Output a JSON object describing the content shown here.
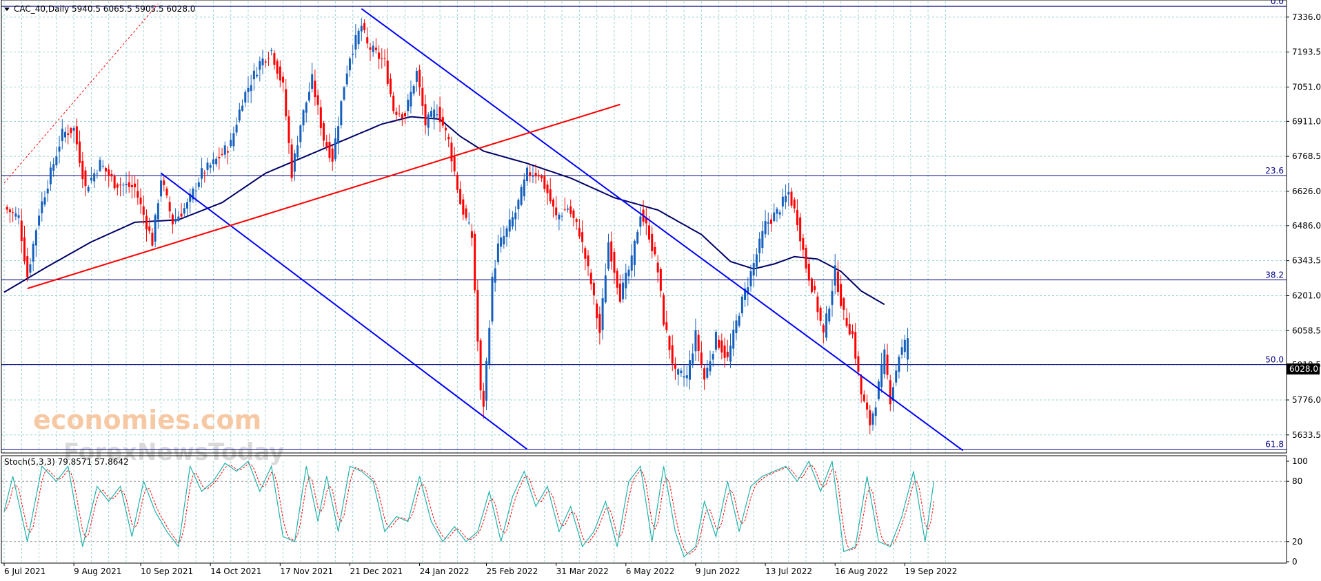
{
  "header": {
    "symbol": "CAC_40,Daily",
    "ohlc": "5940.5 6065.5 5905.5 6028.0"
  },
  "stoch_label": "Stoch(5,3,3) 79.8571 57.8642",
  "watermark": {
    "line1": "economies.com",
    "line2": "ForexNewsToday"
  },
  "current_price_label": "6028.0",
  "colors": {
    "bull": "#1560BD",
    "bear": "#FF0000",
    "ma": "#000066",
    "trendline_blue": "#0000FF",
    "trendline_red": "#FF0000",
    "fib_line": "#000080",
    "grid": "#9ED3D3",
    "stoch_main": "#20B2AA",
    "stoch_signal": "#FF0000"
  },
  "chart_data": [
    {
      "type": "candlestick",
      "title": "CAC_40,Daily",
      "ylim": [
        5560,
        7400
      ],
      "price_ticks": [
        "7336.0",
        "7193.5",
        "7051.0",
        "6911.0",
        "6768.5",
        "6626.0",
        "6486.0",
        "6343.5",
        "6201.0",
        "6058.5",
        "5918.5",
        "5776.0",
        "5633.5"
      ],
      "price_tick_values": [
        7336.0,
        7193.5,
        7051.0,
        6911.0,
        6768.5,
        6626.0,
        6486.0,
        6343.5,
        6201.0,
        6058.5,
        5918.5,
        5776.0,
        5633.5
      ],
      "date_ticks": [
        "6 Jul 2021",
        "9 Aug 2021",
        "10 Sep 2021",
        "14 Oct 2021",
        "17 Nov 2021",
        "21 Dec 2021",
        "24 Jan 2022",
        "25 Feb 2022",
        "31 Mar 2022",
        "6 May 2022",
        "9 Jun 2022",
        "13 Jul 2022",
        "16 Aug 2022",
        "19 Sep 2022"
      ],
      "date_tick_bar_index": [
        0,
        24,
        47,
        71,
        95,
        119,
        143,
        166,
        190,
        214,
        238,
        262,
        286,
        310
      ],
      "fibonacci": [
        {
          "label": "0.0",
          "value": 7380
        },
        {
          "label": "23.6",
          "value": 6690
        },
        {
          "label": "38.2",
          "value": 6265
        },
        {
          "label": "50.0",
          "value": 5920
        },
        {
          "label": "61.8",
          "value": 5575
        }
      ],
      "anchors": [
        {
          "i": 0,
          "p": 6560
        },
        {
          "i": 5,
          "p": 6520
        },
        {
          "i": 8,
          "p": 6280
        },
        {
          "i": 12,
          "p": 6540
        },
        {
          "i": 20,
          "p": 6860
        },
        {
          "i": 24,
          "p": 6880
        },
        {
          "i": 28,
          "p": 6640
        },
        {
          "i": 33,
          "p": 6740
        },
        {
          "i": 38,
          "p": 6660
        },
        {
          "i": 45,
          "p": 6640
        },
        {
          "i": 51,
          "p": 6420
        },
        {
          "i": 54,
          "p": 6680
        },
        {
          "i": 58,
          "p": 6500
        },
        {
          "i": 63,
          "p": 6570
        },
        {
          "i": 68,
          "p": 6700
        },
        {
          "i": 72,
          "p": 6740
        },
        {
          "i": 78,
          "p": 6820
        },
        {
          "i": 82,
          "p": 7000
        },
        {
          "i": 88,
          "p": 7150
        },
        {
          "i": 92,
          "p": 7200
        },
        {
          "i": 96,
          "p": 7050
        },
        {
          "i": 99,
          "p": 6700
        },
        {
          "i": 102,
          "p": 6900
        },
        {
          "i": 106,
          "p": 7080
        },
        {
          "i": 110,
          "p": 6840
        },
        {
          "i": 113,
          "p": 6760
        },
        {
          "i": 117,
          "p": 7060
        },
        {
          "i": 119,
          "p": 7180
        },
        {
          "i": 123,
          "p": 7300
        },
        {
          "i": 125,
          "p": 7220
        },
        {
          "i": 131,
          "p": 7150
        },
        {
          "i": 134,
          "p": 6960
        },
        {
          "i": 138,
          "p": 6940
        },
        {
          "i": 142,
          "p": 7110
        },
        {
          "i": 145,
          "p": 6900
        },
        {
          "i": 149,
          "p": 6960
        },
        {
          "i": 153,
          "p": 6830
        },
        {
          "i": 157,
          "p": 6580
        },
        {
          "i": 161,
          "p": 6440
        },
        {
          "i": 164,
          "p": 5800
        },
        {
          "i": 165,
          "p": 5760
        },
        {
          "i": 168,
          "p": 6260
        },
        {
          "i": 170,
          "p": 6400
        },
        {
          "i": 172,
          "p": 6440
        },
        {
          "i": 176,
          "p": 6540
        },
        {
          "i": 180,
          "p": 6700
        },
        {
          "i": 184,
          "p": 6700
        },
        {
          "i": 187,
          "p": 6620
        },
        {
          "i": 190,
          "p": 6520
        },
        {
          "i": 194,
          "p": 6560
        },
        {
          "i": 198,
          "p": 6460
        },
        {
          "i": 202,
          "p": 6250
        },
        {
          "i": 205,
          "p": 6050
        },
        {
          "i": 208,
          "p": 6420
        },
        {
          "i": 212,
          "p": 6200
        },
        {
          "i": 216,
          "p": 6340
        },
        {
          "i": 219,
          "p": 6540
        },
        {
          "i": 222,
          "p": 6450
        },
        {
          "i": 225,
          "p": 6300
        },
        {
          "i": 227,
          "p": 6100
        },
        {
          "i": 231,
          "p": 5880
        },
        {
          "i": 235,
          "p": 5870
        },
        {
          "i": 238,
          "p": 6040
        },
        {
          "i": 241,
          "p": 5860
        },
        {
          "i": 245,
          "p": 6030
        },
        {
          "i": 249,
          "p": 5940
        },
        {
          "i": 253,
          "p": 6140
        },
        {
          "i": 258,
          "p": 6330
        },
        {
          "i": 262,
          "p": 6490
        },
        {
          "i": 266,
          "p": 6540
        },
        {
          "i": 270,
          "p": 6620
        },
        {
          "i": 273,
          "p": 6510
        },
        {
          "i": 276,
          "p": 6320
        },
        {
          "i": 279,
          "p": 6200
        },
        {
          "i": 282,
          "p": 6040
        },
        {
          "i": 286,
          "p": 6300
        },
        {
          "i": 289,
          "p": 6120
        },
        {
          "i": 292,
          "p": 6040
        },
        {
          "i": 295,
          "p": 5800
        },
        {
          "i": 298,
          "p": 5680
        },
        {
          "i": 300,
          "p": 5770
        },
        {
          "i": 303,
          "p": 5960
        },
        {
          "i": 305,
          "p": 5780
        },
        {
          "i": 308,
          "p": 5960
        },
        {
          "i": 311,
          "p": 6028
        }
      ],
      "moving_average_anchors": [
        {
          "i": 0,
          "p": 6215
        },
        {
          "i": 15,
          "p": 6320
        },
        {
          "i": 30,
          "p": 6420
        },
        {
          "i": 45,
          "p": 6500
        },
        {
          "i": 60,
          "p": 6510
        },
        {
          "i": 75,
          "p": 6580
        },
        {
          "i": 90,
          "p": 6700
        },
        {
          "i": 100,
          "p": 6750
        },
        {
          "i": 110,
          "p": 6800
        },
        {
          "i": 120,
          "p": 6850
        },
        {
          "i": 130,
          "p": 6900
        },
        {
          "i": 140,
          "p": 6930
        },
        {
          "i": 150,
          "p": 6920
        },
        {
          "i": 157,
          "p": 6850
        },
        {
          "i": 165,
          "p": 6790
        },
        {
          "i": 180,
          "p": 6740
        },
        {
          "i": 195,
          "p": 6680
        },
        {
          "i": 210,
          "p": 6600
        },
        {
          "i": 225,
          "p": 6550
        },
        {
          "i": 240,
          "p": 6450
        },
        {
          "i": 250,
          "p": 6340
        },
        {
          "i": 258,
          "p": 6310
        },
        {
          "i": 265,
          "p": 6330
        },
        {
          "i": 272,
          "p": 6360
        },
        {
          "i": 280,
          "p": 6350
        },
        {
          "i": 288,
          "p": 6300
        },
        {
          "i": 295,
          "p": 6220
        },
        {
          "i": 303,
          "p": 6165
        }
      ],
      "trendlines": [
        {
          "name": "upper-descending",
          "i1": 123,
          "p1": 7370,
          "i2": 330,
          "p2": 5570,
          "color": "blue"
        },
        {
          "name": "channel-lower",
          "i1": 54,
          "p1": 6700,
          "i2": 180,
          "p2": 5575,
          "color": "blue"
        },
        {
          "name": "rising-support",
          "i1": 8,
          "p1": 6230,
          "i2": 212,
          "p2": 6980,
          "color": "red"
        },
        {
          "name": "projection",
          "i1": 0,
          "p1": 6660,
          "i2": 53,
          "p2": 7390,
          "color": "red",
          "dotted": true
        }
      ]
    },
    {
      "type": "line",
      "title": "Stoch(5,3,3)",
      "ylim": [
        0,
        100
      ],
      "y_ticks": [
        "100",
        "80",
        "20",
        "0"
      ],
      "y_tick_values": [
        100,
        80,
        20,
        0
      ],
      "levels": [
        80,
        20
      ],
      "main_anchors": [
        {
          "i": 0,
          "v": 50
        },
        {
          "i": 3,
          "v": 85
        },
        {
          "i": 8,
          "v": 20
        },
        {
          "i": 13,
          "v": 95
        },
        {
          "i": 18,
          "v": 80
        },
        {
          "i": 22,
          "v": 95
        },
        {
          "i": 27,
          "v": 15
        },
        {
          "i": 32,
          "v": 75
        },
        {
          "i": 36,
          "v": 60
        },
        {
          "i": 40,
          "v": 75
        },
        {
          "i": 44,
          "v": 25
        },
        {
          "i": 48,
          "v": 80
        },
        {
          "i": 52,
          "v": 50
        },
        {
          "i": 56,
          "v": 30
        },
        {
          "i": 60,
          "v": 15
        },
        {
          "i": 64,
          "v": 95
        },
        {
          "i": 68,
          "v": 70
        },
        {
          "i": 72,
          "v": 80
        },
        {
          "i": 76,
          "v": 98
        },
        {
          "i": 80,
          "v": 90
        },
        {
          "i": 84,
          "v": 100
        },
        {
          "i": 88,
          "v": 70
        },
        {
          "i": 92,
          "v": 95
        },
        {
          "i": 96,
          "v": 25
        },
        {
          "i": 100,
          "v": 20
        },
        {
          "i": 104,
          "v": 95
        },
        {
          "i": 108,
          "v": 40
        },
        {
          "i": 111,
          "v": 85
        },
        {
          "i": 115,
          "v": 30
        },
        {
          "i": 119,
          "v": 95
        },
        {
          "i": 123,
          "v": 90
        },
        {
          "i": 127,
          "v": 80
        },
        {
          "i": 131,
          "v": 30
        },
        {
          "i": 135,
          "v": 45
        },
        {
          "i": 139,
          "v": 40
        },
        {
          "i": 143,
          "v": 85
        },
        {
          "i": 147,
          "v": 40
        },
        {
          "i": 151,
          "v": 20
        },
        {
          "i": 155,
          "v": 35
        },
        {
          "i": 159,
          "v": 20
        },
        {
          "i": 163,
          "v": 30
        },
        {
          "i": 167,
          "v": 70
        },
        {
          "i": 171,
          "v": 20
        },
        {
          "i": 175,
          "v": 65
        },
        {
          "i": 179,
          "v": 90
        },
        {
          "i": 183,
          "v": 55
        },
        {
          "i": 187,
          "v": 75
        },
        {
          "i": 191,
          "v": 30
        },
        {
          "i": 195,
          "v": 55
        },
        {
          "i": 199,
          "v": 15
        },
        {
          "i": 203,
          "v": 30
        },
        {
          "i": 207,
          "v": 60
        },
        {
          "i": 211,
          "v": 15
        },
        {
          "i": 215,
          "v": 80
        },
        {
          "i": 219,
          "v": 95
        },
        {
          "i": 223,
          "v": 20
        },
        {
          "i": 227,
          "v": 95
        },
        {
          "i": 231,
          "v": 30
        },
        {
          "i": 234,
          "v": 5
        },
        {
          "i": 238,
          "v": 15
        },
        {
          "i": 241,
          "v": 60
        },
        {
          "i": 245,
          "v": 25
        },
        {
          "i": 249,
          "v": 80
        },
        {
          "i": 253,
          "v": 30
        },
        {
          "i": 257,
          "v": 75
        },
        {
          "i": 261,
          "v": 85
        },
        {
          "i": 265,
          "v": 90
        },
        {
          "i": 269,
          "v": 95
        },
        {
          "i": 273,
          "v": 80
        },
        {
          "i": 277,
          "v": 100
        },
        {
          "i": 281,
          "v": 70
        },
        {
          "i": 285,
          "v": 100
        },
        {
          "i": 289,
          "v": 10
        },
        {
          "i": 293,
          "v": 15
        },
        {
          "i": 297,
          "v": 85
        },
        {
          "i": 301,
          "v": 20
        },
        {
          "i": 305,
          "v": 15
        },
        {
          "i": 309,
          "v": 45
        },
        {
          "i": 313,
          "v": 90
        },
        {
          "i": 317,
          "v": 20
        },
        {
          "i": 320,
          "v": 80
        }
      ]
    }
  ]
}
